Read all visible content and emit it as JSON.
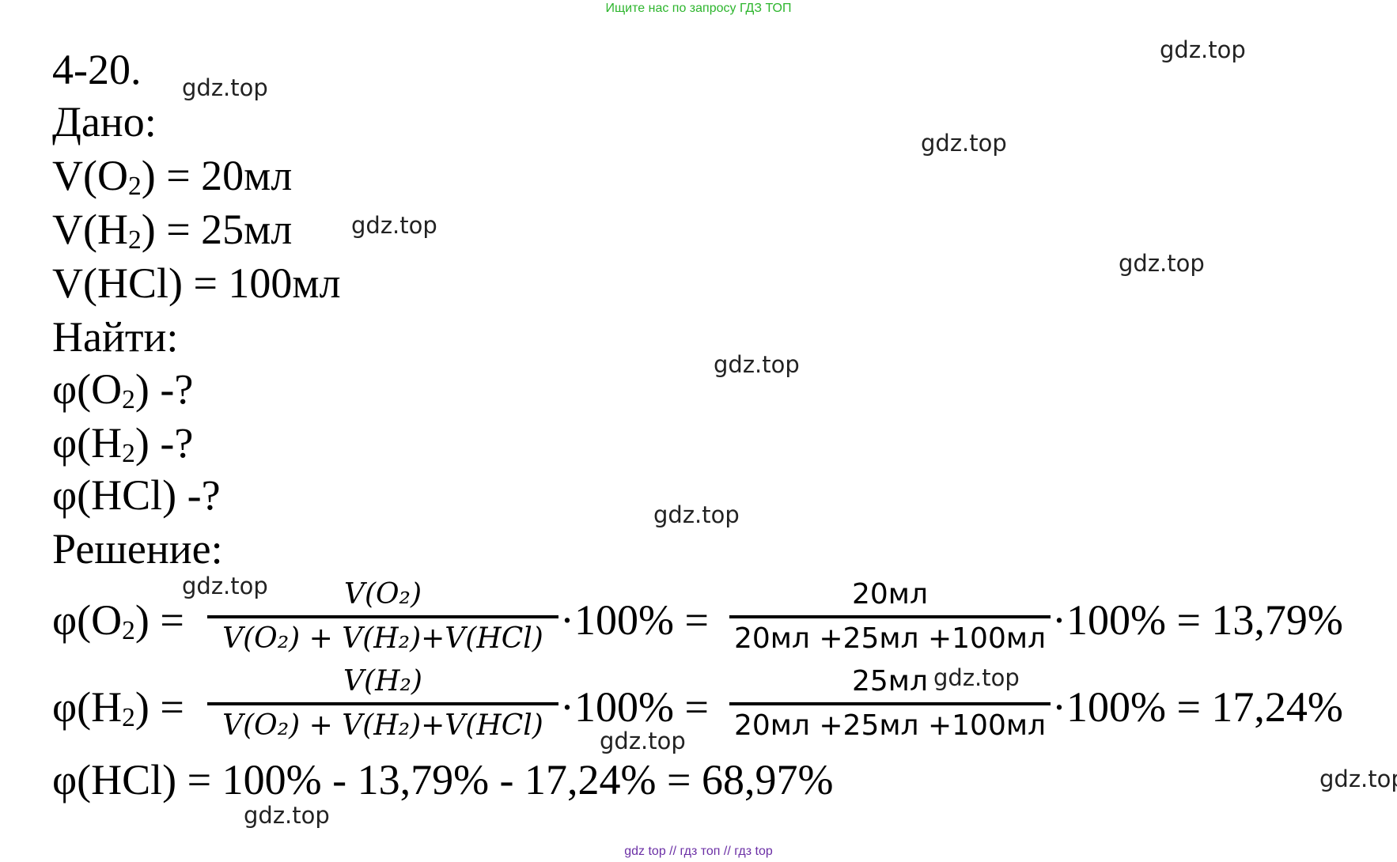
{
  "banner_top": "Ищите нас по запросу ГДЗ ТОП",
  "banner_bottom": {
    "part1": "gdz top",
    "sep1": "//",
    "part2": "гдз топ",
    "sep2": "//",
    "part3": "гдз top"
  },
  "watermark": "gdz.top",
  "problem_number": "4-20.",
  "given": {
    "heading": "Дано:",
    "o2": {
      "prefix": "V(O",
      "sub": "2",
      "suffix": ") = 20мл"
    },
    "h2": {
      "prefix": "V(H",
      "sub": "2",
      "suffix": ") = 25мл"
    },
    "hcl": "V(HCl) = 100мл"
  },
  "find": {
    "heading": "Найти:",
    "o2": {
      "prefix": "φ(O",
      "sub": "2",
      "suffix": ") -?"
    },
    "h2": {
      "prefix": "φ(H",
      "sub": "2",
      "suffix": ") -?"
    },
    "hcl": "φ(HCl) -?"
  },
  "solution": {
    "heading": "Решение:",
    "eq1": {
      "lhs_prefix": "φ(O",
      "lhs_sub": "2",
      "lhs_suffix": ") =",
      "frac_num": "V(O₂)",
      "frac_den": "V(O₂) + V(H₂)+V(HCl)",
      "mid": "·100% =",
      "frac2_num": "20мл",
      "frac2_den": "20мл +25мл +100мл",
      "result": "·100% = 13,79%"
    },
    "eq2": {
      "lhs_prefix": "φ(H",
      "lhs_sub": "2",
      "lhs_suffix": ") =",
      "frac_num": "V(H₂)",
      "frac_den": "V(O₂) + V(H₂)+V(HCl)",
      "mid": "·100% =",
      "frac2_num": "25мл",
      "frac2_den": "20мл +25мл +100мл",
      "result": "·100% = 17,24%"
    },
    "eq3": "φ(HCl) = 100% - 13,79% - 17,24% = 68,97%"
  }
}
